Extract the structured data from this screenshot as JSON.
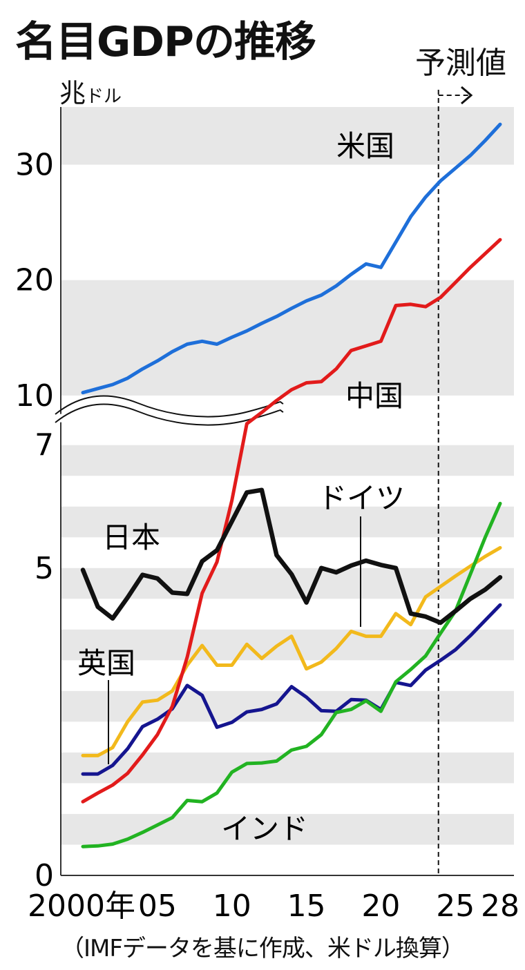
{
  "title": "名目GDPの推移",
  "unit_main": "兆",
  "unit_sub": "ドル",
  "forecast_label": "予測値",
  "source_note": "（IMFデータを基に作成、米ドル換算）",
  "chart_data": {
    "type": "line",
    "title": "名目GDPの推移",
    "ylabel": "兆ドル",
    "xlabel": "",
    "x": [
      2000,
      2001,
      2002,
      2003,
      2004,
      2005,
      2006,
      2007,
      2008,
      2009,
      2010,
      2011,
      2012,
      2013,
      2014,
      2015,
      2016,
      2017,
      2018,
      2019,
      2020,
      2021,
      2022,
      2023,
      2024,
      2025,
      2026,
      2027,
      2028
    ],
    "x_tick_labels": [
      {
        "x": 2000,
        "label": "2000年"
      },
      {
        "x": 2005,
        "label": "05"
      },
      {
        "x": 2010,
        "label": "10"
      },
      {
        "x": 2015,
        "label": "15"
      },
      {
        "x": 2020,
        "label": "20"
      },
      {
        "x": 2025,
        "label": "25"
      },
      {
        "x": 2028,
        "label": "28"
      }
    ],
    "y_tick_labels": [
      "0",
      "5",
      "7",
      "10",
      "20",
      "30"
    ],
    "axis_break": {
      "lower_range": [
        0,
        7.3
      ],
      "upper_range": [
        7.3,
        35
      ]
    },
    "forecast_start": 2024,
    "series": [
      {
        "name": "米国",
        "color": "#1e6fd9",
        "values": [
          10.25,
          10.6,
          10.95,
          11.5,
          12.3,
          13.0,
          13.8,
          14.45,
          14.7,
          14.45,
          15.05,
          15.6,
          16.25,
          16.85,
          17.55,
          18.2,
          18.7,
          19.5,
          20.5,
          21.4,
          21.1,
          23.3,
          25.5,
          27.2,
          28.6,
          29.7,
          30.8,
          32.1,
          33.5
        ]
      },
      {
        "name": "中国",
        "color": "#e21b1b",
        "values": [
          1.2,
          1.34,
          1.47,
          1.66,
          1.96,
          2.29,
          2.75,
          3.55,
          4.59,
          5.1,
          6.1,
          7.55,
          8.53,
          9.57,
          10.5,
          11.1,
          11.2,
          12.3,
          13.9,
          14.3,
          14.7,
          17.8,
          17.9,
          17.7,
          18.5,
          19.8,
          21.1,
          22.3,
          23.5
        ]
      },
      {
        "name": "日本",
        "color": "#111111",
        "values": [
          4.97,
          4.37,
          4.18,
          4.52,
          4.89,
          4.83,
          4.6,
          4.58,
          5.11,
          5.29,
          5.76,
          6.23,
          6.27,
          5.21,
          4.9,
          4.44,
          5.0,
          4.93,
          5.04,
          5.12,
          5.05,
          5.0,
          4.26,
          4.21,
          4.11,
          4.3,
          4.5,
          4.65,
          4.85
        ]
      },
      {
        "name": "ドイツ",
        "color": "#f2b91c",
        "values": [
          1.95,
          1.95,
          2.08,
          2.5,
          2.82,
          2.85,
          3.0,
          3.42,
          3.74,
          3.42,
          3.42,
          3.76,
          3.53,
          3.73,
          3.89,
          3.36,
          3.47,
          3.69,
          3.97,
          3.89,
          3.89,
          4.26,
          4.08,
          4.53,
          4.7,
          4.87,
          5.03,
          5.19,
          5.33
        ]
      },
      {
        "name": "英国",
        "color": "#15158f",
        "values": [
          1.65,
          1.65,
          1.79,
          2.06,
          2.42,
          2.54,
          2.71,
          3.09,
          2.93,
          2.41,
          2.49,
          2.66,
          2.7,
          2.79,
          3.07,
          2.9,
          2.68,
          2.67,
          2.86,
          2.85,
          2.7,
          3.14,
          3.09,
          3.34,
          3.5,
          3.67,
          3.9,
          4.15,
          4.4
        ]
      },
      {
        "name": "インド",
        "color": "#22b322",
        "values": [
          0.47,
          0.48,
          0.51,
          0.59,
          0.7,
          0.82,
          0.94,
          1.22,
          1.2,
          1.34,
          1.68,
          1.82,
          1.83,
          1.86,
          2.04,
          2.1,
          2.29,
          2.65,
          2.7,
          2.84,
          2.67,
          3.15,
          3.35,
          3.57,
          3.94,
          4.3,
          4.9,
          5.5,
          6.05
        ]
      }
    ]
  }
}
